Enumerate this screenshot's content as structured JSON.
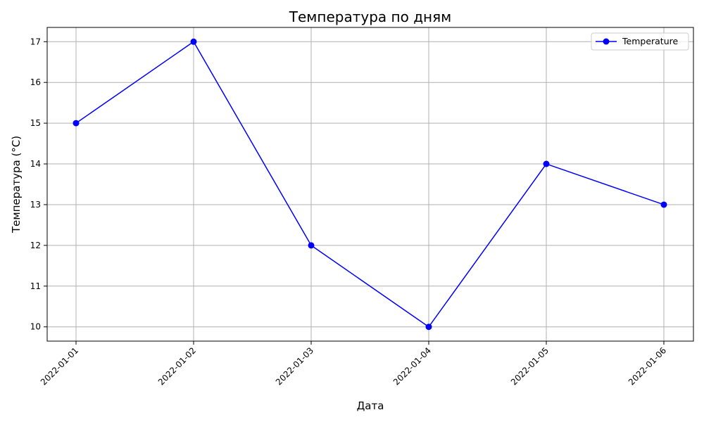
{
  "chart_data": {
    "type": "line",
    "title": "Температура по дням",
    "xlabel": "Дата",
    "ylabel": "Температура (°C)",
    "categories": [
      "2022-01-01",
      "2022-01-02",
      "2022-01-03",
      "2022-01-04",
      "2022-01-05",
      "2022-01-06"
    ],
    "series": [
      {
        "name": "Temperature",
        "values": [
          15,
          17,
          12,
          10,
          14,
          13
        ],
        "color": "#0000ff",
        "marker": "circle"
      }
    ],
    "ylim": [
      9.65,
      17.35
    ],
    "yticks": [
      10,
      11,
      12,
      13,
      14,
      15,
      16,
      17
    ],
    "grid": true,
    "legend_position": "top-right"
  }
}
